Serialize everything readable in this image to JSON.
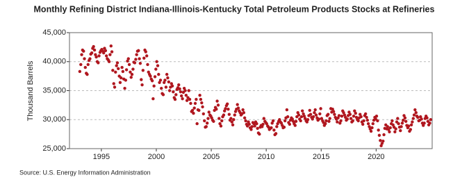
{
  "chart_data": {
    "type": "scatter",
    "title": "Monthly Refining District Indiana-Illinois-Kentucky Total Petroleum Products Stocks at Refineries",
    "y_label": "Thousand Barrels",
    "source": "Source: U.S. Energy Information Administration",
    "grid": true,
    "xlim": [
      1992.1,
      2025.1
    ],
    "xticks": [
      1995,
      2000,
      2005,
      2010,
      2015,
      2020
    ],
    "ylim": [
      25000,
      45000
    ],
    "yticks": [
      {
        "value": 25000,
        "label": "25,000"
      },
      {
        "value": 30000,
        "label": "30,000"
      },
      {
        "value": 35000,
        "label": "35,000"
      },
      {
        "value": 40000,
        "label": "40,000"
      },
      {
        "value": 45000,
        "label": "45,000"
      }
    ],
    "series": [
      {
        "color": "#b0171f",
        "x": [
          1993.04,
          1993.13,
          1993.21,
          1993.29,
          1993.38,
          1993.46,
          1993.54,
          1993.63,
          1993.71,
          1993.79,
          1993.88,
          1993.96,
          1994.04,
          1994.13,
          1994.21,
          1994.29,
          1994.38,
          1994.46,
          1994.54,
          1994.63,
          1994.71,
          1994.79,
          1994.88,
          1994.96,
          1995.04,
          1995.13,
          1995.21,
          1995.29,
          1995.38,
          1995.46,
          1995.54,
          1995.63,
          1995.71,
          1995.79,
          1995.88,
          1995.96,
          1996.04,
          1996.13,
          1996.21,
          1996.29,
          1996.38,
          1996.46,
          1996.54,
          1996.63,
          1996.71,
          1996.79,
          1996.88,
          1996.96,
          1997.04,
          1997.13,
          1997.21,
          1997.29,
          1997.38,
          1997.46,
          1997.54,
          1997.63,
          1997.71,
          1997.79,
          1997.88,
          1997.96,
          1998.04,
          1998.13,
          1998.21,
          1998.29,
          1998.38,
          1998.46,
          1998.54,
          1998.63,
          1998.71,
          1998.79,
          1998.88,
          1998.96,
          1999.04,
          1999.13,
          1999.21,
          1999.29,
          1999.38,
          1999.46,
          1999.54,
          1999.63,
          1999.71,
          1999.79,
          1999.88,
          1999.96,
          2000.04,
          2000.13,
          2000.21,
          2000.29,
          2000.38,
          2000.46,
          2000.54,
          2000.63,
          2000.71,
          2000.79,
          2000.88,
          2000.96,
          2001.04,
          2001.13,
          2001.21,
          2001.29,
          2001.38,
          2001.46,
          2001.54,
          2001.63,
          2001.71,
          2001.79,
          2001.88,
          2001.96,
          2002.04,
          2002.13,
          2002.21,
          2002.29,
          2002.38,
          2002.46,
          2002.54,
          2002.63,
          2002.71,
          2002.79,
          2002.88,
          2002.96,
          2003.04,
          2003.13,
          2003.21,
          2003.29,
          2003.38,
          2003.46,
          2003.54,
          2003.63,
          2003.71,
          2003.79,
          2003.88,
          2003.96,
          2004.04,
          2004.13,
          2004.21,
          2004.29,
          2004.38,
          2004.46,
          2004.54,
          2004.63,
          2004.71,
          2004.79,
          2004.88,
          2004.96,
          2005.04,
          2005.13,
          2005.21,
          2005.29,
          2005.38,
          2005.46,
          2005.54,
          2005.63,
          2005.71,
          2005.79,
          2005.88,
          2005.96,
          2006.04,
          2006.13,
          2006.21,
          2006.29,
          2006.38,
          2006.46,
          2006.54,
          2006.63,
          2006.71,
          2006.79,
          2006.88,
          2006.96,
          2007.04,
          2007.13,
          2007.21,
          2007.29,
          2007.38,
          2007.46,
          2007.54,
          2007.63,
          2007.71,
          2007.79,
          2007.88,
          2007.96,
          2008.04,
          2008.13,
          2008.21,
          2008.29,
          2008.38,
          2008.46,
          2008.54,
          2008.63,
          2008.71,
          2008.79,
          2008.88,
          2008.96,
          2009.04,
          2009.13,
          2009.21,
          2009.29,
          2009.38,
          2009.46,
          2009.54,
          2009.63,
          2009.71,
          2009.79,
          2009.88,
          2009.96,
          2010.04,
          2010.13,
          2010.21,
          2010.29,
          2010.38,
          2010.46,
          2010.54,
          2010.63,
          2010.71,
          2010.79,
          2010.88,
          2010.96,
          2011.04,
          2011.13,
          2011.21,
          2011.29,
          2011.38,
          2011.46,
          2011.54,
          2011.63,
          2011.71,
          2011.79,
          2011.88,
          2011.96,
          2012.04,
          2012.13,
          2012.21,
          2012.29,
          2012.38,
          2012.46,
          2012.54,
          2012.63,
          2012.71,
          2012.79,
          2012.88,
          2012.96,
          2013.04,
          2013.13,
          2013.21,
          2013.29,
          2013.38,
          2013.46,
          2013.54,
          2013.63,
          2013.71,
          2013.79,
          2013.88,
          2013.96,
          2014.04,
          2014.13,
          2014.21,
          2014.29,
          2014.38,
          2014.46,
          2014.54,
          2014.63,
          2014.71,
          2014.79,
          2014.88,
          2014.96,
          2015.04,
          2015.13,
          2015.21,
          2015.29,
          2015.38,
          2015.46,
          2015.54,
          2015.63,
          2015.71,
          2015.79,
          2015.88,
          2015.96,
          2016.04,
          2016.13,
          2016.21,
          2016.29,
          2016.38,
          2016.46,
          2016.54,
          2016.63,
          2016.71,
          2016.79,
          2016.88,
          2016.96,
          2017.04,
          2017.13,
          2017.21,
          2017.29,
          2017.38,
          2017.46,
          2017.54,
          2017.63,
          2017.71,
          2017.79,
          2017.88,
          2017.96,
          2018.04,
          2018.13,
          2018.21,
          2018.29,
          2018.38,
          2018.46,
          2018.54,
          2018.63,
          2018.71,
          2018.79,
          2018.88,
          2018.96,
          2019.04,
          2019.13,
          2019.21,
          2019.29,
          2019.38,
          2019.46,
          2019.54,
          2019.63,
          2019.71,
          2019.79,
          2019.88,
          2019.96,
          2020.04,
          2020.13,
          2020.21,
          2020.29,
          2020.38,
          2020.46,
          2020.54,
          2020.63,
          2020.71,
          2020.79,
          2020.88,
          2020.96,
          2021.04,
          2021.13,
          2021.21,
          2021.29,
          2021.38,
          2021.46,
          2021.54,
          2021.63,
          2021.71,
          2021.79,
          2021.88,
          2021.96,
          2022.04,
          2022.13,
          2022.21,
          2022.29,
          2022.38,
          2022.46,
          2022.54,
          2022.63,
          2022.71,
          2022.79,
          2022.88,
          2022.96,
          2023.04,
          2023.13,
          2023.21,
          2023.29,
          2023.38,
          2023.46,
          2023.54,
          2023.63,
          2023.71,
          2023.79,
          2023.88,
          2023.96,
          2024.04,
          2024.13,
          2024.21,
          2024.29,
          2024.38,
          2024.46,
          2024.54,
          2024.63,
          2024.71,
          2024.79,
          2024.88,
          2024.96
        ],
        "values": [
          38300,
          39500,
          41200,
          42000,
          41800,
          40500,
          39000,
          38000,
          37800,
          39500,
          40200,
          40500,
          41300,
          41500,
          42300,
          42600,
          42000,
          41200,
          40800,
          40000,
          39800,
          41000,
          41600,
          41900,
          42100,
          41800,
          41500,
          42300,
          41900,
          41000,
          40500,
          40300,
          40000,
          41200,
          42700,
          41700,
          38500,
          36200,
          35600,
          38200,
          39300,
          39800,
          38800,
          37500,
          36400,
          37200,
          39000,
          38300,
          37000,
          35400,
          36800,
          38600,
          40100,
          40500,
          39500,
          38200,
          37300,
          37800,
          38700,
          39900,
          39800,
          40400,
          41200,
          41800,
          41900,
          40500,
          39700,
          36900,
          36000,
          38500,
          40600,
          42000,
          41700,
          41000,
          39500,
          38200,
          37800,
          37500,
          37000,
          36700,
          33600,
          35800,
          37400,
          38700,
          40000,
          39300,
          37800,
          36400,
          36800,
          35400,
          34500,
          34300,
          36400,
          36800,
          35600,
          37800,
          37200,
          36500,
          35000,
          35600,
          36200,
          35800,
          34800,
          33800,
          33500,
          34300,
          35200,
          35500,
          36000,
          35300,
          34800,
          34100,
          33600,
          34700,
          35400,
          35000,
          34200,
          33300,
          33800,
          35000,
          33500,
          32800,
          31400,
          31600,
          31100,
          32000,
          32800,
          33500,
          29300,
          31700,
          31600,
          34200,
          33500,
          32900,
          32200,
          31000,
          29800,
          28700,
          28800,
          29400,
          30200,
          31300,
          30800,
          30600,
          30300,
          29900,
          29700,
          31600,
          32100,
          31800,
          33200,
          32500,
          30200,
          29300,
          28900,
          29800,
          30500,
          30800,
          31500,
          31900,
          32400,
          32700,
          31800,
          30900,
          29900,
          30200,
          29600,
          29100,
          30000,
          30800,
          31400,
          31800,
          32600,
          32000,
          31500,
          31200,
          30800,
          31000,
          31700,
          31200,
          30300,
          29800,
          29200,
          28900,
          29600,
          29200,
          28600,
          28300,
          28800,
          29500,
          29300,
          28900,
          29600,
          29300,
          28500,
          27700,
          27500,
          28700,
          29000,
          28800,
          29200,
          30200,
          29700,
          29500,
          29300,
          28900,
          28700,
          28300,
          28500,
          28600,
          29400,
          29800,
          28200,
          27400,
          27600,
          28800,
          29300,
          29700,
          30000,
          29600,
          29400,
          29000,
          28600,
          28700,
          29800,
          30300,
          31700,
          30500,
          29500,
          29200,
          29900,
          30300,
          30100,
          29700,
          29300,
          29000,
          29700,
          30500,
          31200,
          30800,
          30100,
          29800,
          30500,
          31500,
          31000,
          30600,
          30200,
          29800,
          29600,
          30000,
          30700,
          31600,
          30900,
          30400,
          30100,
          30500,
          31200,
          31700,
          30800,
          30300,
          29900,
          30100,
          31000,
          31900,
          30200,
          29800,
          29500,
          29000,
          29300,
          29800,
          30700,
          30900,
          29700,
          30200,
          31900,
          31300,
          31800,
          31400,
          30900,
          30400,
          30100,
          29600,
          30300,
          30700,
          29400,
          29800,
          30600,
          31500,
          31200,
          30800,
          30400,
          29900,
          30100,
          30700,
          31300,
          30900,
          30200,
          29600,
          29800,
          30600,
          31500,
          31100,
          30400,
          30000,
          29800,
          30300,
          30900,
          30500,
          29600,
          29200,
          29800,
          30700,
          31000,
          30400,
          29900,
          29300,
          28800,
          28400,
          28000,
          28600,
          29300,
          29900,
          30400,
          30100,
          30600,
          29800,
          28200,
          27300,
          26400,
          25500,
          25900,
          26300,
          27400,
          28500,
          29100,
          28400,
          28800,
          28300,
          27900,
          28600,
          29300,
          29800,
          29100,
          28700,
          27900,
          28400,
          29600,
          30200,
          29300,
          28700,
          28100,
          28800,
          29400,
          29900,
          30700,
          30300,
          29700,
          29000,
          28600,
          28900,
          28000,
          28300,
          29100,
          29600,
          30200,
          30800,
          31700,
          31200,
          30600,
          30400,
          29800,
          29900,
          30500,
          30100,
          29400,
          29000,
          29400,
          30200,
          30600,
          30300,
          29700,
          29100,
          29400,
          30000
        ]
      }
    ]
  }
}
